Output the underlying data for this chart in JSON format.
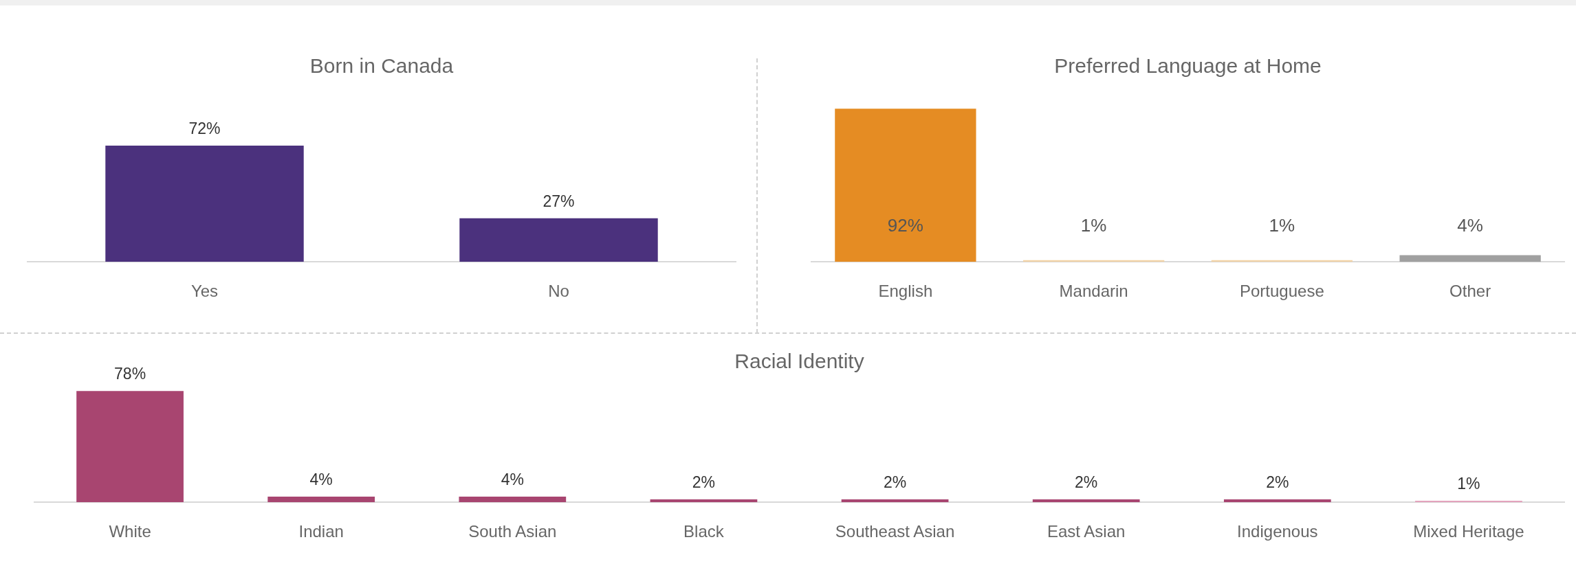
{
  "chart_data": [
    {
      "type": "bar",
      "title": "Born in Canada",
      "categories": [
        "Yes",
        "No"
      ],
      "values": [
        72,
        27
      ],
      "value_labels": [
        "72%",
        "27%"
      ],
      "color": "#4b317d",
      "grid": false,
      "legend": false
    },
    {
      "type": "bar",
      "title": "Preferred Language at Home",
      "categories": [
        "English",
        "Mandarin",
        "Portuguese",
        "Other"
      ],
      "values": [
        92,
        1,
        1,
        4
      ],
      "value_labels": [
        "92%",
        "1%",
        "1%",
        "4%"
      ],
      "colors": [
        "#e58c23",
        "#f2d3a6",
        "#f2d3a6",
        "#a0a0a0"
      ],
      "grid": false,
      "legend": false
    },
    {
      "type": "bar",
      "title": "Racial Identity",
      "categories": [
        "White",
        "Indian",
        "South Asian",
        "Black",
        "Southeast Asian",
        "East Asian",
        "Indigenous",
        "Mixed Heritage"
      ],
      "values": [
        78,
        4,
        4,
        2,
        2,
        2,
        2,
        1
      ],
      "value_labels": [
        "78%",
        "4%",
        "4%",
        "2%",
        "2%",
        "2%",
        "2%",
        "1%"
      ],
      "colors": [
        "#a84570",
        "#a84570",
        "#a84570",
        "#a84570",
        "#a84570",
        "#a84570",
        "#a84570",
        "#e3a3bd"
      ],
      "grid": false,
      "legend": false
    }
  ]
}
